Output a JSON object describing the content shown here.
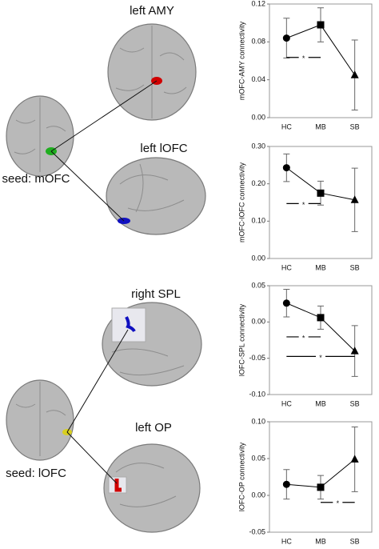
{
  "brain_panels": [
    {
      "seed": "seed: mOFC",
      "targets": [
        "left AMY",
        "left lOFC"
      ]
    },
    {
      "seed": "seed: lOFC",
      "targets": [
        "right SPL",
        "left OP"
      ]
    }
  ],
  "chart_data": [
    {
      "type": "line",
      "ylabel": "mOFC-AMY connectivity",
      "categories": [
        "HC",
        "MB",
        "SB"
      ],
      "markers": [
        "circle",
        "square",
        "triangle"
      ],
      "series": [
        {
          "color": "#000000",
          "values": [
            0.084,
            0.098,
            0.045
          ],
          "errors": [
            0.021,
            0.018,
            0.037
          ]
        }
      ],
      "ylim": [
        0,
        0.12
      ],
      "yticks": [
        {
          "value": 0,
          "label": "0.00"
        },
        {
          "value": 0.04,
          "label": "0.04"
        },
        {
          "value": 0.08,
          "label": "0.08"
        },
        {
          "value": 0.12,
          "label": "0.12"
        }
      ],
      "significance": [
        {
          "label": "*",
          "from": "HC",
          "to": "MB"
        }
      ]
    },
    {
      "type": "line",
      "ylabel": "mOFC-lOFC connectivity",
      "categories": [
        "HC",
        "MB",
        "SB"
      ],
      "markers": [
        "circle",
        "square",
        "triangle"
      ],
      "series": [
        {
          "color": "#000000",
          "values": [
            0.243,
            0.175,
            0.157
          ],
          "errors": [
            0.037,
            0.032,
            0.085
          ]
        }
      ],
      "ylim": [
        0,
        0.3
      ],
      "yticks": [
        {
          "value": 0,
          "label": "0.00"
        },
        {
          "value": 0.1,
          "label": "0.10"
        },
        {
          "value": 0.2,
          "label": "0.20"
        },
        {
          "value": 0.3,
          "label": "0.30"
        }
      ],
      "significance": [
        {
          "label": "*",
          "from": "HC",
          "to": "MB"
        }
      ]
    },
    {
      "type": "line",
      "ylabel": "lOFC-SPL connectivity",
      "categories": [
        "HC",
        "MB",
        "SB"
      ],
      "markers": [
        "circle",
        "square",
        "triangle"
      ],
      "series": [
        {
          "color": "#000000",
          "values": [
            0.026,
            0.006,
            -0.04
          ],
          "errors": [
            0.019,
            0.016,
            0.035
          ]
        }
      ],
      "ylim": [
        -0.1,
        0.05
      ],
      "yticks": [
        {
          "value": -0.1,
          "label": "-0.10"
        },
        {
          "value": -0.05,
          "label": "-0.05"
        },
        {
          "value": 0,
          "label": "0.00"
        },
        {
          "value": 0.05,
          "label": "0.05"
        }
      ],
      "significance": [
        {
          "label": "*",
          "from": "HC",
          "to": "MB"
        },
        {
          "label": "*",
          "from": "HC",
          "to": "SB"
        }
      ]
    },
    {
      "type": "line",
      "ylabel": "lOFC-OP connectivity",
      "categories": [
        "HC",
        "MB",
        "SB"
      ],
      "markers": [
        "circle",
        "square",
        "triangle"
      ],
      "series": [
        {
          "color": "#000000",
          "values": [
            0.015,
            0.011,
            0.049
          ],
          "errors": [
            0.02,
            0.016,
            0.044
          ]
        }
      ],
      "ylim": [
        -0.05,
        0.1
      ],
      "yticks": [
        {
          "value": -0.05,
          "label": "-0.05"
        },
        {
          "value": 0,
          "label": "0.00"
        },
        {
          "value": 0.05,
          "label": "0.05"
        },
        {
          "value": 0.1,
          "label": "0.10"
        }
      ],
      "significance": [
        {
          "label": "*",
          "from": "MB",
          "to": "SB"
        }
      ]
    }
  ]
}
